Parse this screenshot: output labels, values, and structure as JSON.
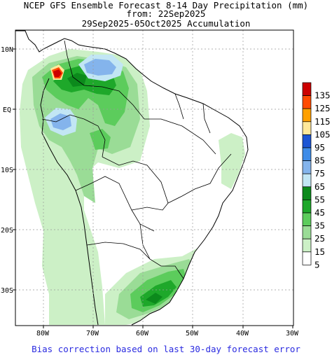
{
  "title": {
    "line1": "NCEP GFS Ensemble Forecast 8-14 Day Precipitation (mm)",
    "line2": "from: 22Sep2025",
    "line3": "29Sep2025-05Oct2025 Accumulation"
  },
  "map": {
    "lat_labels": [
      "10N",
      "EQ",
      "10S",
      "20S",
      "30S"
    ],
    "lon_labels": [
      "80W",
      "70W",
      "60W",
      "50W",
      "40W",
      "30W"
    ]
  },
  "legend": {
    "unit": "mm",
    "items": [
      {
        "label": "135",
        "color": "#cc0000"
      },
      {
        "label": "125",
        "color": "#ff4a00"
      },
      {
        "label": "115",
        "color": "#ffa000"
      },
      {
        "label": "105",
        "color": "#ffe89a"
      },
      {
        "label": "95",
        "color": "#1c55d4"
      },
      {
        "label": "85",
        "color": "#3f8ce8"
      },
      {
        "label": "75",
        "color": "#84b4ec"
      },
      {
        "label": "65",
        "color": "#c2e6f4"
      },
      {
        "label": "55",
        "color": "#0c8a1c"
      },
      {
        "label": "45",
        "color": "#1ea82a"
      },
      {
        "label": "35",
        "color": "#5ccc5c"
      },
      {
        "label": "25",
        "color": "#9adc96"
      },
      {
        "label": "15",
        "color": "#ccf0c6"
      },
      {
        "label": "5",
        "color": "#ffffff"
      }
    ]
  },
  "footer": "Bias correction based on last 30-day forecast error"
}
